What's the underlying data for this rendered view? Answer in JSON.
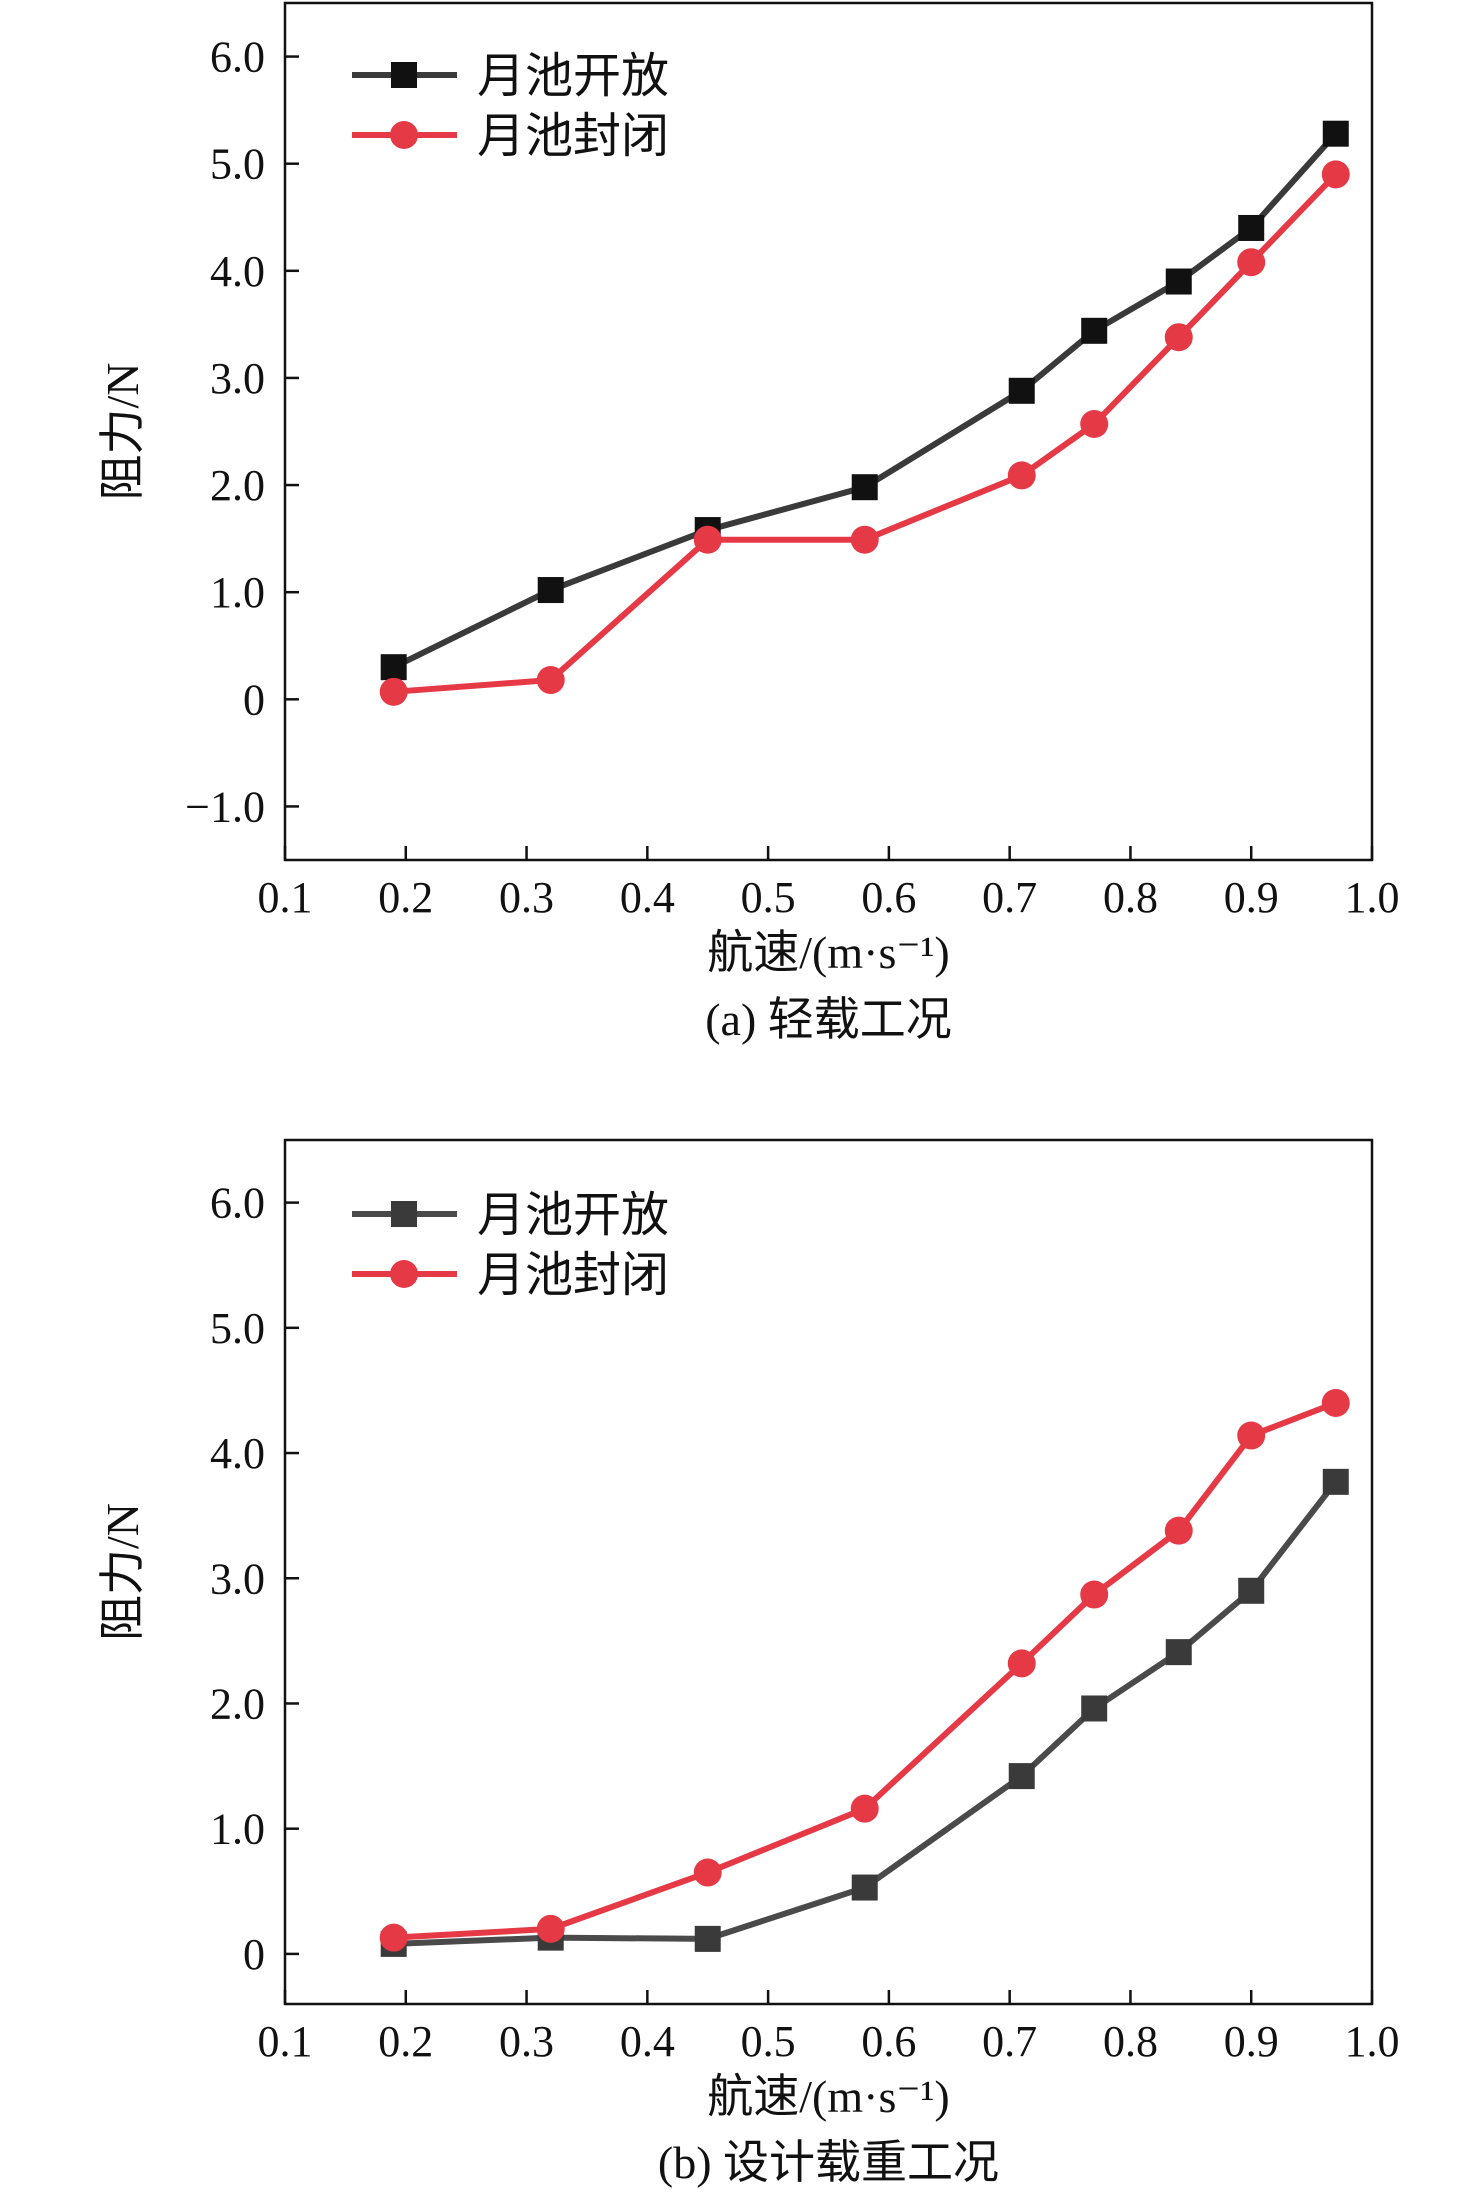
{
  "chart_data": [
    {
      "type": "line",
      "caption": "(a) 轻载工况",
      "xlabel": "航速/(m·s⁻¹)",
      "ylabel": "阻力/N",
      "xlim": [
        0.1,
        1.0
      ],
      "ylim": [
        -1.5,
        6.5
      ],
      "xticks": [
        0.1,
        0.2,
        0.3,
        0.4,
        0.5,
        0.6,
        0.7,
        0.8,
        0.9,
        1.0
      ],
      "xtick_labels": [
        "0.1",
        "0.2",
        "0.3",
        "0.4",
        "0.5",
        "0.6",
        "0.7",
        "0.8",
        "0.9",
        "1.0"
      ],
      "yticks": [
        -1.0,
        0,
        1.0,
        2.0,
        3.0,
        4.0,
        5.0,
        6.0
      ],
      "ytick_labels": [
        "−1.0",
        "0",
        "1.0",
        "2.0",
        "3.0",
        "4.0",
        "5.0",
        "6.0"
      ],
      "grid": false,
      "legend_position": "top-left",
      "x": [
        0.19,
        0.32,
        0.45,
        0.58,
        0.71,
        0.77,
        0.84,
        0.9,
        0.97
      ],
      "series": [
        {
          "name": "月池开放",
          "marker": "square",
          "color": "#3a3a3a",
          "marker_color": "#111111",
          "values": [
            0.3,
            1.02,
            1.58,
            1.98,
            2.88,
            3.44,
            3.9,
            4.4,
            5.28
          ]
        },
        {
          "name": "月池封闭",
          "marker": "circle",
          "color": "#e63946",
          "marker_color": "#e63946",
          "values": [
            0.07,
            0.18,
            1.49,
            1.49,
            2.09,
            2.57,
            3.38,
            4.08,
            4.9
          ]
        }
      ]
    },
    {
      "type": "line",
      "caption": "(b) 设计载重工况",
      "xlabel": "航速/(m·s⁻¹)",
      "ylabel": "阻力/N",
      "xlim": [
        0.1,
        1.0
      ],
      "ylim": [
        -0.4,
        6.5
      ],
      "xticks": [
        0.1,
        0.2,
        0.3,
        0.4,
        0.5,
        0.6,
        0.7,
        0.8,
        0.9,
        1.0
      ],
      "xtick_labels": [
        "0.1",
        "0.2",
        "0.3",
        "0.4",
        "0.5",
        "0.6",
        "0.7",
        "0.8",
        "0.9",
        "1.0"
      ],
      "yticks": [
        0,
        1.0,
        2.0,
        3.0,
        4.0,
        5.0,
        6.0
      ],
      "ytick_labels": [
        "0",
        "1.0",
        "2.0",
        "3.0",
        "4.0",
        "5.0",
        "6.0"
      ],
      "grid": false,
      "legend_position": "top-left",
      "x": [
        0.19,
        0.32,
        0.45,
        0.58,
        0.71,
        0.77,
        0.84,
        0.9,
        0.97
      ],
      "series": [
        {
          "name": "月池开放",
          "marker": "square",
          "color": "#4a4a4a",
          "marker_color": "#3a3a3a",
          "values": [
            0.08,
            0.13,
            0.12,
            0.53,
            1.42,
            1.96,
            2.41,
            2.9,
            3.77
          ]
        },
        {
          "name": "月池封闭",
          "marker": "circle",
          "color": "#e63946",
          "marker_color": "#e63946",
          "values": [
            0.13,
            0.2,
            0.65,
            1.16,
            2.32,
            2.87,
            3.38,
            4.14,
            4.4
          ]
        }
      ]
    }
  ]
}
